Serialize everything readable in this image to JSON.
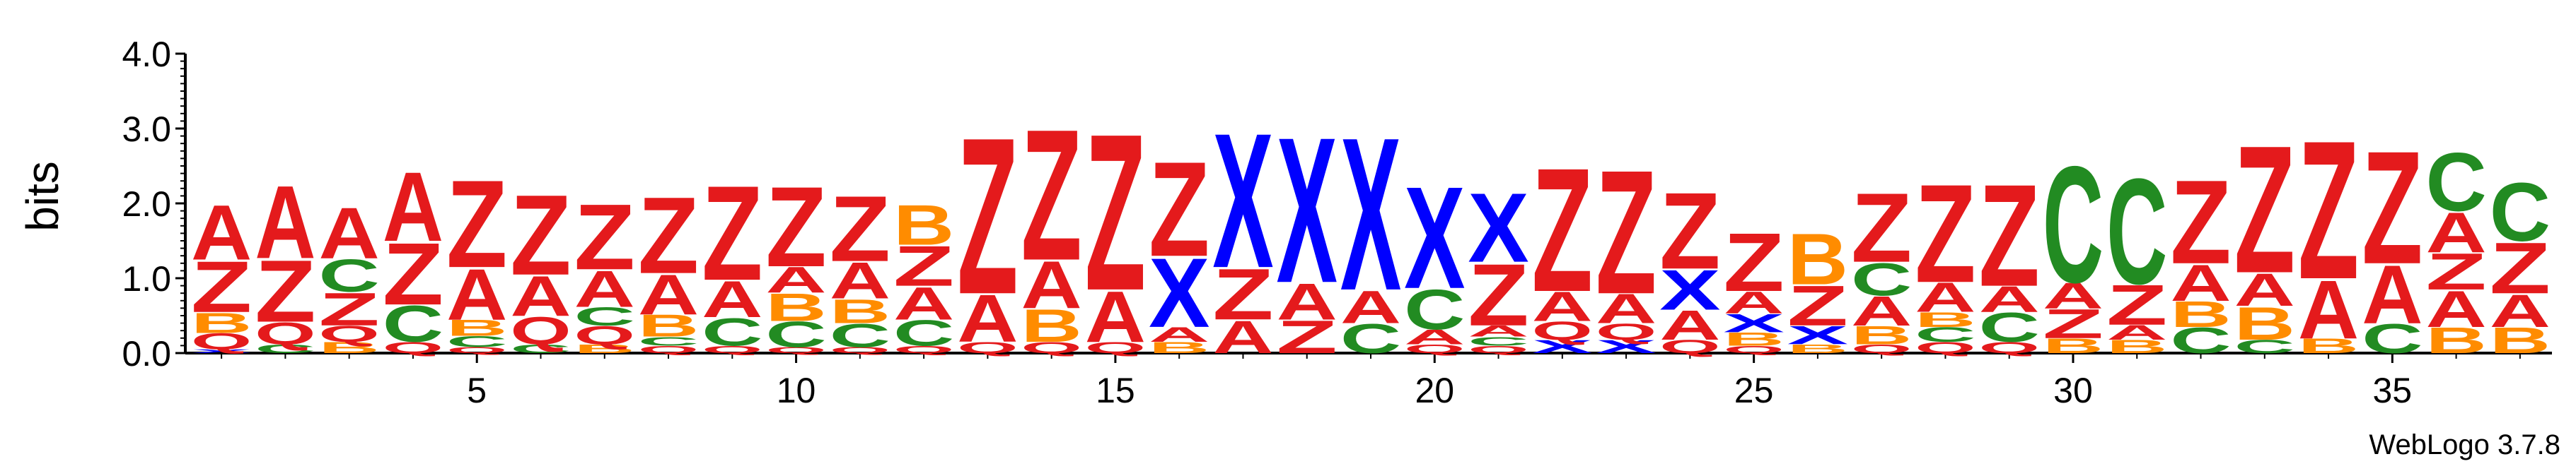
{
  "chart_data": {
    "type": "sequence-logo",
    "ylabel": "bits",
    "ylim": [
      0,
      4.0
    ],
    "y_ticks": [
      "0.0",
      "1.0",
      "2.0",
      "3.0",
      "4.0"
    ],
    "x_range": [
      1,
      37
    ],
    "x_ticks": [
      "5",
      "10",
      "15",
      "20",
      "25",
      "30",
      "35"
    ],
    "colors": {
      "A": "#e41a1c",
      "Z": "#e41a1c",
      "Q": "#e41a1c",
      "X": "#0000ff",
      "C": "#228b22",
      "B": "#ff8c00"
    },
    "positions": [
      {
        "pos": 1,
        "stack": [
          [
            "X",
            0.05
          ],
          [
            "Q",
            0.22
          ],
          [
            "B",
            0.28
          ],
          [
            "Z",
            0.7
          ],
          [
            "A",
            0.75
          ]
        ]
      },
      {
        "pos": 2,
        "stack": [
          [
            "C",
            0.12
          ],
          [
            "Q",
            0.3
          ],
          [
            "Z",
            0.85
          ],
          [
            "A",
            1.0
          ]
        ]
      },
      {
        "pos": 3,
        "stack": [
          [
            "B",
            0.15
          ],
          [
            "Q",
            0.22
          ],
          [
            "Z",
            0.45
          ],
          [
            "C",
            0.45
          ],
          [
            "A",
            0.7
          ]
        ]
      },
      {
        "pos": 4,
        "stack": [
          [
            "Q",
            0.15
          ],
          [
            "C",
            0.5
          ],
          [
            "Z",
            0.85
          ],
          [
            "A",
            0.95
          ]
        ]
      },
      {
        "pos": 5,
        "stack": [
          [
            "Q",
            0.08
          ],
          [
            "C",
            0.15
          ],
          [
            "B",
            0.22
          ],
          [
            "A",
            0.7
          ],
          [
            "Z",
            1.2
          ]
        ]
      },
      {
        "pos": 6,
        "stack": [
          [
            "C",
            0.12
          ],
          [
            "Q",
            0.38
          ],
          [
            "A",
            0.55
          ],
          [
            "Z",
            1.1
          ]
        ]
      },
      {
        "pos": 7,
        "stack": [
          [
            "B",
            0.12
          ],
          [
            "Q",
            0.25
          ],
          [
            "C",
            0.25
          ],
          [
            "A",
            0.5
          ],
          [
            "Z",
            0.9
          ]
        ]
      },
      {
        "pos": 8,
        "stack": [
          [
            "Q",
            0.1
          ],
          [
            "C",
            0.12
          ],
          [
            "B",
            0.3
          ],
          [
            "A",
            0.55
          ],
          [
            "Z",
            1.05
          ]
        ]
      },
      {
        "pos": 9,
        "stack": [
          [
            "Q",
            0.1
          ],
          [
            "C",
            0.38
          ],
          [
            "A",
            0.5
          ],
          [
            "Z",
            1.3
          ]
        ]
      },
      {
        "pos": 10,
        "stack": [
          [
            "Q",
            0.08
          ],
          [
            "C",
            0.35
          ],
          [
            "B",
            0.38
          ],
          [
            "A",
            0.35
          ],
          [
            "Z",
            1.1
          ]
        ]
      },
      {
        "pos": 11,
        "stack": [
          [
            "Q",
            0.08
          ],
          [
            "C",
            0.32
          ],
          [
            "B",
            0.33
          ],
          [
            "A",
            0.5
          ],
          [
            "Z",
            0.9
          ]
        ]
      },
      {
        "pos": 12,
        "stack": [
          [
            "Q",
            0.1
          ],
          [
            "C",
            0.35
          ],
          [
            "A",
            0.45
          ],
          [
            "Z",
            0.55
          ],
          [
            "B",
            0.55
          ]
        ]
      },
      {
        "pos": 13,
        "stack": [
          [
            "Q",
            0.15
          ],
          [
            "A",
            0.65
          ],
          [
            "Z",
            2.15
          ]
        ]
      },
      {
        "pos": 14,
        "stack": [
          [
            "Q",
            0.15
          ],
          [
            "B",
            0.45
          ],
          [
            "A",
            0.65
          ],
          [
            "Z",
            1.8
          ]
        ]
      },
      {
        "pos": 15,
        "stack": [
          [
            "Q",
            0.15
          ],
          [
            "A",
            0.7
          ],
          [
            "Z",
            2.15
          ]
        ]
      },
      {
        "pos": 16,
        "stack": [
          [
            "B",
            0.15
          ],
          [
            "A",
            0.2
          ],
          [
            "X",
            0.95
          ],
          [
            "Z",
            1.3
          ]
        ]
      },
      {
        "pos": 17,
        "stack": [
          [
            "A",
            0.45
          ],
          [
            "Z",
            0.7
          ],
          [
            "X",
            1.85
          ]
        ]
      },
      {
        "pos": 18,
        "stack": [
          [
            "Z",
            0.45
          ],
          [
            "A",
            0.5
          ],
          [
            "X",
            2.0
          ]
        ]
      },
      {
        "pos": 19,
        "stack": [
          [
            "C",
            0.4
          ],
          [
            "A",
            0.45
          ],
          [
            "X",
            2.1
          ]
        ]
      },
      {
        "pos": 20,
        "stack": [
          [
            "Q",
            0.12
          ],
          [
            "A",
            0.2
          ],
          [
            "C",
            0.55
          ],
          [
            "X",
            1.4
          ]
        ]
      },
      {
        "pos": 21,
        "stack": [
          [
            "Q",
            0.1
          ],
          [
            "C",
            0.12
          ],
          [
            "A",
            0.15
          ],
          [
            "Z",
            0.85
          ],
          [
            "X",
            0.95
          ]
        ]
      },
      {
        "pos": 22,
        "stack": [
          [
            "X",
            0.18
          ],
          [
            "Q",
            0.25
          ],
          [
            "A",
            0.4
          ],
          [
            "Z",
            1.7
          ]
        ]
      },
      {
        "pos": 23,
        "stack": [
          [
            "X",
            0.18
          ],
          [
            "Q",
            0.22
          ],
          [
            "A",
            0.4
          ],
          [
            "Z",
            1.7
          ]
        ]
      },
      {
        "pos": 24,
        "stack": [
          [
            "Q",
            0.18
          ],
          [
            "A",
            0.4
          ],
          [
            "X",
            0.55
          ],
          [
            "Z",
            1.05
          ]
        ]
      },
      {
        "pos": 25,
        "stack": [
          [
            "Q",
            0.1
          ],
          [
            "B",
            0.18
          ],
          [
            "X",
            0.25
          ],
          [
            "A",
            0.3
          ],
          [
            "Z",
            0.8
          ]
        ]
      },
      {
        "pos": 26,
        "stack": [
          [
            "B",
            0.12
          ],
          [
            "X",
            0.25
          ],
          [
            "Z",
            0.55
          ],
          [
            "B",
            0.7
          ]
        ]
      },
      {
        "pos": 27,
        "stack": [
          [
            "Q",
            0.12
          ],
          [
            "B",
            0.25
          ],
          [
            "A",
            0.4
          ],
          [
            "C",
            0.45
          ],
          [
            "Z",
            0.95
          ]
        ]
      },
      {
        "pos": 28,
        "stack": [
          [
            "Q",
            0.15
          ],
          [
            "C",
            0.2
          ],
          [
            "B",
            0.2
          ],
          [
            "A",
            0.4
          ],
          [
            "Z",
            1.35
          ]
        ]
      },
      {
        "pos": 29,
        "stack": [
          [
            "Q",
            0.15
          ],
          [
            "C",
            0.4
          ],
          [
            "A",
            0.35
          ],
          [
            "Z",
            1.4
          ]
        ]
      },
      {
        "pos": 30,
        "stack": [
          [
            "B",
            0.2
          ],
          [
            "Z",
            0.4
          ],
          [
            "A",
            0.35
          ],
          [
            "C",
            1.6
          ]
        ]
      },
      {
        "pos": 31,
        "stack": [
          [
            "B",
            0.18
          ],
          [
            "A",
            0.2
          ],
          [
            "Z",
            0.55
          ],
          [
            "C",
            1.45
          ]
        ]
      },
      {
        "pos": 32,
        "stack": [
          [
            "C",
            0.35
          ],
          [
            "B",
            0.35
          ],
          [
            "A",
            0.5
          ],
          [
            "Z",
            1.15
          ]
        ]
      },
      {
        "pos": 33,
        "stack": [
          [
            "C",
            0.18
          ],
          [
            "B",
            0.45
          ],
          [
            "A",
            0.45
          ],
          [
            "Z",
            1.75
          ]
        ]
      },
      {
        "pos": 34,
        "stack": [
          [
            "B",
            0.2
          ],
          [
            "A",
            0.8
          ],
          [
            "Z",
            1.9
          ]
        ]
      },
      {
        "pos": 35,
        "stack": [
          [
            "C",
            0.4
          ],
          [
            "A",
            0.8
          ],
          [
            "Z",
            1.55
          ]
        ]
      },
      {
        "pos": 36,
        "stack": [
          [
            "B",
            0.35
          ],
          [
            "A",
            0.5
          ],
          [
            "Z",
            0.5
          ],
          [
            "A",
            0.55
          ],
          [
            "C",
            0.8
          ]
        ]
      },
      {
        "pos": 37,
        "stack": [
          [
            "B",
            0.35
          ],
          [
            "A",
            0.45
          ],
          [
            "Z",
            0.7
          ],
          [
            "C",
            0.8
          ]
        ]
      }
    ]
  },
  "footer": {
    "credit": "WebLogo 3.7.8"
  }
}
